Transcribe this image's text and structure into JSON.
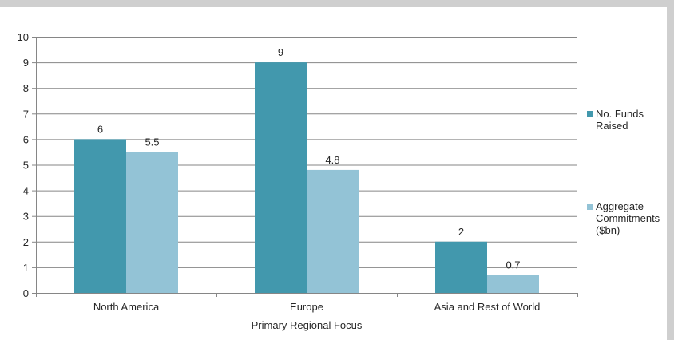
{
  "chart_data": {
    "type": "bar",
    "title": "",
    "xlabel": "Primary Regional Focus",
    "ylabel": "",
    "ylim": [
      0,
      10
    ],
    "yticks": [
      0,
      1,
      2,
      3,
      4,
      5,
      6,
      7,
      8,
      9,
      10
    ],
    "categories": [
      "North America",
      "Europe",
      "Asia and Rest of World"
    ],
    "series": [
      {
        "name": "No. Funds Raised",
        "legend_lines": [
          "No. Funds",
          "Raised"
        ],
        "color": "#4298ad",
        "values": [
          6,
          9,
          2
        ],
        "value_labels": [
          "6",
          "9",
          "2"
        ]
      },
      {
        "name": "Aggregate Commitments ($bn)",
        "legend_lines": [
          "Aggregate",
          "Commitments",
          "($bn)"
        ],
        "color": "#93c3d6",
        "values": [
          5.5,
          4.8,
          0.7
        ],
        "value_labels": [
          "5.5",
          "4.8",
          "0.7"
        ]
      }
    ],
    "grid": true,
    "legend_position": "right",
    "colors": {
      "gridline": "#868686",
      "text": "#262626",
      "background": "#ffffff",
      "frame": "#cfcfcf"
    }
  }
}
